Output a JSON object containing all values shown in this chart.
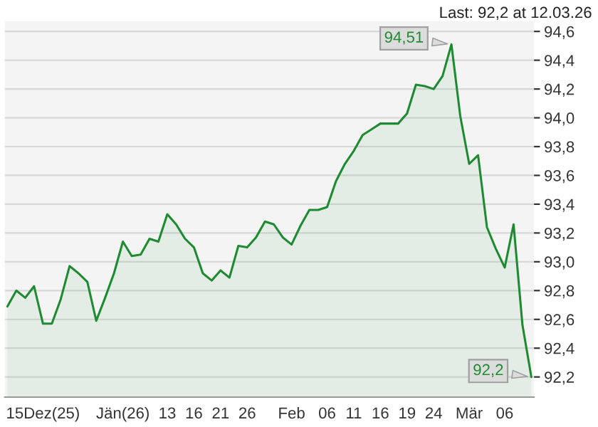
{
  "chart_data": {
    "type": "area",
    "categories": [
      null,
      null,
      null,
      null,
      "15Dez(25)",
      null,
      null,
      null,
      null,
      null,
      null,
      null,
      null,
      "Jän(26)",
      null,
      null,
      null,
      null,
      "13",
      null,
      null,
      "16",
      null,
      null,
      "21",
      null,
      null,
      "26",
      null,
      null,
      null,
      null,
      "Feb",
      null,
      null,
      null,
      "06",
      null,
      null,
      "11",
      null,
      null,
      "16",
      null,
      null,
      "19",
      null,
      null,
      "24",
      null,
      null,
      null,
      "Mär",
      null,
      null,
      null,
      "06",
      null,
      null,
      null
    ],
    "series": [
      {
        "color": "#1e8a32",
        "values": [
          92.69,
          92.8,
          92.75,
          92.83,
          92.57,
          92.57,
          92.74,
          92.97,
          92.92,
          92.86,
          92.59,
          92.75,
          92.92,
          93.14,
          93.04,
          93.05,
          93.16,
          93.14,
          93.33,
          93.26,
          93.16,
          93.1,
          92.92,
          92.87,
          92.94,
          92.89,
          93.11,
          93.1,
          93.17,
          93.28,
          93.26,
          93.17,
          93.12,
          93.25,
          93.36,
          93.36,
          93.38,
          93.56,
          93.68,
          93.77,
          93.88,
          93.92,
          93.96,
          93.96,
          93.96,
          94.03,
          94.23,
          94.22,
          94.2,
          94.29,
          94.51,
          94.01,
          93.68,
          93.74,
          93.24,
          93.09,
          92.96,
          93.26,
          92.56,
          92.2
        ],
        "value_labels": [
          null,
          null,
          null,
          null,
          null,
          null,
          null,
          null,
          null,
          null,
          null,
          null,
          null,
          null,
          null,
          null,
          null,
          null,
          null,
          null,
          null,
          null,
          null,
          null,
          null,
          null,
          null,
          null,
          null,
          null,
          null,
          null,
          null,
          null,
          null,
          null,
          null,
          null,
          null,
          null,
          null,
          null,
          null,
          null,
          null,
          null,
          null,
          null,
          null,
          null,
          "94,51",
          null,
          null,
          null,
          null,
          null,
          null,
          null,
          null,
          "92,2"
        ]
      }
    ],
    "ylim": [
      92.06,
      94.67
    ],
    "yticks": [
      {
        "value": 92.2,
        "label": "92,2"
      },
      {
        "value": 92.4,
        "label": "92,4"
      },
      {
        "value": 92.6,
        "label": "92,6"
      },
      {
        "value": 92.8,
        "label": "92,8"
      },
      {
        "value": 93.0,
        "label": "93,0"
      },
      {
        "value": 93.2,
        "label": "93,2"
      },
      {
        "value": 93.4,
        "label": "93,4"
      },
      {
        "value": 93.6,
        "label": "93,6"
      },
      {
        "value": 93.8,
        "label": "93,8"
      },
      {
        "value": 94.0,
        "label": "94,0"
      },
      {
        "value": 94.2,
        "label": "94,2"
      },
      {
        "value": 94.4,
        "label": "94,4"
      },
      {
        "value": 94.6,
        "label": "94,6"
      }
    ],
    "grid": "y",
    "annotations": [
      "Last: 92,2 at 12.03.26"
    ]
  }
}
